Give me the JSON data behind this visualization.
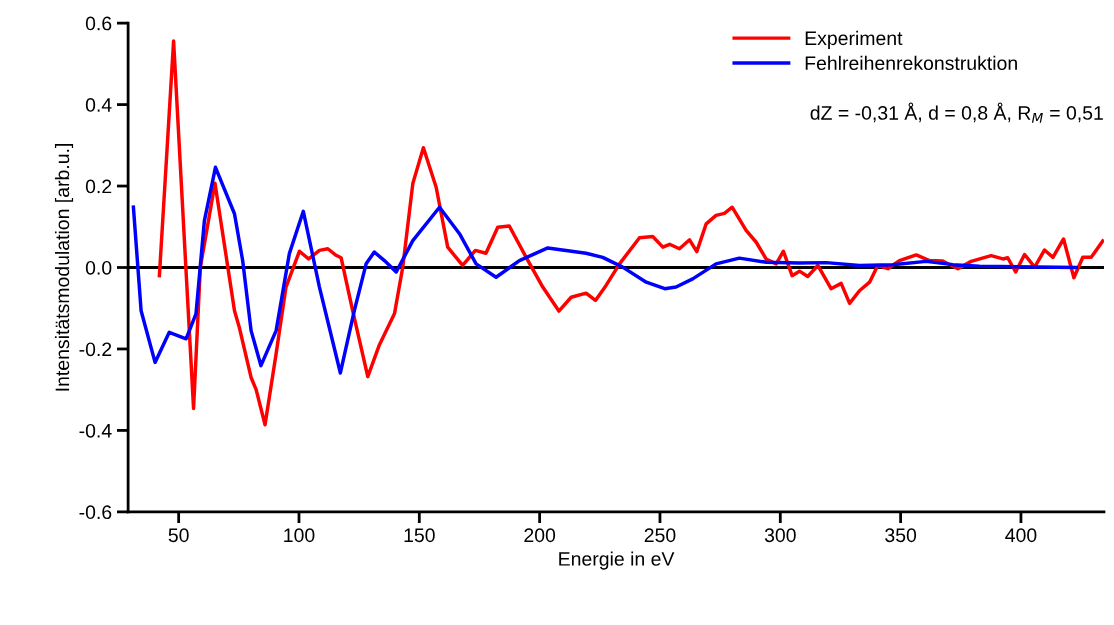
{
  "chart_data": {
    "type": "line",
    "xlabel": "Energie in eV",
    "ylabel": "Intensitätsmodulation [arb.u.]",
    "xlim": [
      29,
      434.5
    ],
    "xticks": [
      50,
      100,
      150,
      200,
      250,
      300,
      350,
      400
    ],
    "ylim": [
      -0.6,
      0.6
    ],
    "yticks": [
      {
        "value": -0.6,
        "label": "-0.6"
      },
      {
        "value": -0.4,
        "label": "-0.4"
      },
      {
        "value": -0.2,
        "label": "-0.2"
      },
      {
        "value": 0,
        "label": "0.0"
      },
      {
        "value": 0.2,
        "label": "0.2"
      },
      {
        "value": 0.4,
        "label": "0.4"
      },
      {
        "value": 0.6,
        "label": "0.6"
      }
    ],
    "grid": false,
    "legend": "top right",
    "line_style": "solid",
    "marker": "none",
    "ref_lines": [
      {
        "axis": "y",
        "value": 0,
        "color": "#000000",
        "line_style": "solid"
      }
    ],
    "annotations": [
      "dZ = -0,31 Å, d = 0,8 Å, R$_{M}$ = 0,51"
    ],
    "series": [
      {
        "name": "Experiment",
        "color": "#ff0000",
        "x": [
          42,
          47.9,
          53,
          56.2,
          59,
          65.1,
          73.2,
          75.2,
          80.1,
          82.2,
          85.9,
          90.5,
          94.6,
          100.2,
          104,
          108.5,
          112,
          115.4,
          117.5,
          122.3,
          128.6,
          133.4,
          139.7,
          143.1,
          147.3,
          151.7,
          157,
          161.8,
          168,
          173.3,
          177.7,
          182.6,
          187.4,
          194.4,
          201.3,
          208,
          213.1,
          219.3,
          223.2,
          227.6,
          233.2,
          241.5,
          247,
          251.2,
          254,
          258.1,
          262.3,
          265.3,
          269.2,
          273.3,
          276.8,
          280,
          285.8,
          290,
          294.1,
          298.3,
          301.3,
          304.9,
          308,
          311.4,
          315.6,
          321.1,
          325.3,
          328.8,
          332.9,
          337.1,
          340.5,
          344.7,
          349.5,
          356.5,
          362,
          367.5,
          373.8,
          379.3,
          387.6,
          392.5,
          394.5,
          397.8,
          401.5,
          405.7,
          409.8,
          413.3,
          417.7,
          422,
          425.7,
          429.2,
          434
        ],
        "values": [
          -0.02,
          0.556,
          0.0,
          -0.346,
          0.0,
          0.207,
          -0.106,
          -0.147,
          -0.27,
          -0.3,
          -0.386,
          -0.212,
          -0.048,
          0.04,
          0.021,
          0.042,
          0.046,
          0.03,
          0.024,
          -0.106,
          -0.268,
          -0.19,
          -0.113,
          0.0,
          0.206,
          0.294,
          0.197,
          0.05,
          0.005,
          0.042,
          0.035,
          0.099,
          0.102,
          0.025,
          -0.048,
          -0.107,
          -0.073,
          -0.063,
          -0.081,
          -0.044,
          0.009,
          0.073,
          0.076,
          0.05,
          0.057,
          0.046,
          0.068,
          0.039,
          0.107,
          0.128,
          0.133,
          0.148,
          0.091,
          0.062,
          0.021,
          0.009,
          0.04,
          -0.02,
          -0.009,
          -0.022,
          0.005,
          -0.052,
          -0.039,
          -0.088,
          -0.057,
          -0.036,
          0.005,
          -0.003,
          0.017,
          0.031,
          0.017,
          0.016,
          -0.003,
          0.015,
          0.029,
          0.021,
          0.024,
          -0.011,
          0.032,
          0.001,
          0.043,
          0.025,
          0.07,
          -0.025,
          0.025,
          0.025,
          0.065
        ]
      },
      {
        "name": "Fehlreihenrekonstruktion",
        "color": "#0000ff",
        "x": [
          31.2,
          34.4,
          40.2,
          46.1,
          53.1,
          57.2,
          60.7,
          65.3,
          73.2,
          76.6,
          80.1,
          84.2,
          90.5,
          96,
          101.8,
          108.5,
          117.2,
          123,
          127.9,
          131.3,
          135.5,
          140.4,
          147.3,
          158.4,
          166.7,
          173.6,
          181.9,
          191.6,
          203.4,
          219.3,
          226.2,
          234.5,
          244.3,
          252,
          256.7,
          263.6,
          273.3,
          283,
          294.1,
          308,
          319.1,
          332.9,
          346.7,
          360.6,
          371.7,
          382.8,
          423
        ],
        "values": [
          0.148,
          -0.106,
          -0.233,
          -0.159,
          -0.175,
          -0.114,
          0.115,
          0.246,
          0.132,
          0.017,
          -0.155,
          -0.241,
          -0.155,
          0.034,
          0.138,
          -0.048,
          -0.259,
          -0.106,
          0.009,
          0.038,
          0.017,
          -0.011,
          0.066,
          0.148,
          0.083,
          0.009,
          -0.024,
          0.017,
          0.048,
          0.035,
          0.025,
          0.001,
          -0.036,
          -0.052,
          -0.048,
          -0.028,
          0.009,
          0.023,
          0.013,
          0.011,
          0.012,
          0.005,
          0.007,
          0.015,
          0.007,
          0.003,
          0.0
        ]
      }
    ]
  }
}
